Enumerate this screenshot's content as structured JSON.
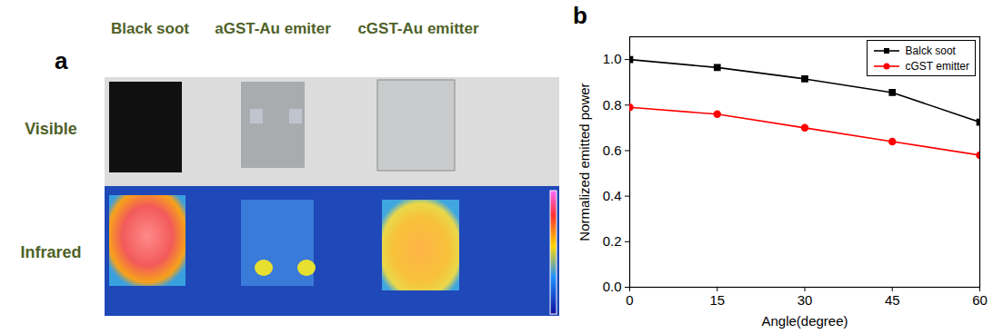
{
  "panel_a": {
    "label": "a",
    "columns": [
      "Black soot",
      "aGST-Au emiter",
      "cGST-Au emitter"
    ],
    "rows": [
      "Visible",
      "Infrared"
    ]
  },
  "chart_data": {
    "type": "line",
    "panel_label": "b",
    "x": [
      0,
      15,
      30,
      45,
      60
    ],
    "series": [
      {
        "name": "Balck soot",
        "color": "#000000",
        "marker": "square",
        "values": [
          1.0,
          0.965,
          0.915,
          0.855,
          0.725
        ]
      },
      {
        "name": "cGST emitter",
        "color": "#ff0000",
        "marker": "circle",
        "values": [
          0.79,
          0.76,
          0.7,
          0.64,
          0.58
        ]
      }
    ],
    "xlabel": "Angle(degree)",
    "ylabel": "Normalized emitted power",
    "xlim": [
      0,
      60
    ],
    "xticks": [
      0,
      15,
      30,
      45,
      60
    ],
    "ylim": [
      0,
      1.1
    ],
    "yticks": [
      {
        "value": 0,
        "label": "0.0"
      },
      {
        "value": 0.2,
        "label": "0.2"
      },
      {
        "value": 0.4,
        "label": "0.4"
      },
      {
        "value": 0.6,
        "label": "0.6"
      },
      {
        "value": 0.8,
        "label": "0.8"
      },
      {
        "value": 1.0,
        "label": "1.0"
      }
    ],
    "legend": "upper right",
    "grid": false
  }
}
